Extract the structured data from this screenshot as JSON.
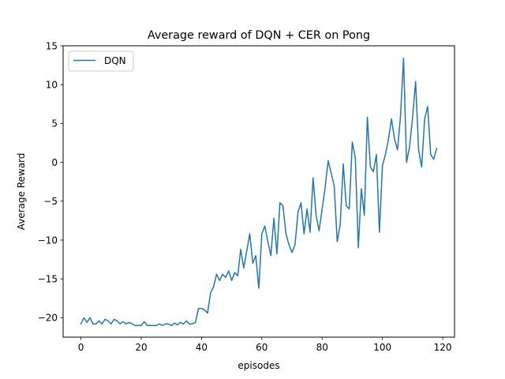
{
  "chart_data": {
    "type": "line",
    "title": "Average reward of DQN + CER on Pong",
    "xlabel": "episodes",
    "ylabel": "Average Reward",
    "xlim": [
      -5.9,
      123.9
    ],
    "ylim": [
      -22.5,
      15.0
    ],
    "xticks": [
      0,
      20,
      40,
      60,
      80,
      100,
      120
    ],
    "yticks": [
      -20,
      -15,
      -10,
      -5,
      0,
      5,
      10,
      15
    ],
    "grid": false,
    "legend": "top-left",
    "series": [
      {
        "name": "DQN",
        "color": "#1f77b4",
        "x": [
          0,
          1,
          2,
          3,
          4,
          5,
          6,
          7,
          8,
          9,
          10,
          11,
          12,
          13,
          14,
          15,
          16,
          17,
          18,
          19,
          20,
          21,
          22,
          23,
          24,
          25,
          26,
          27,
          28,
          29,
          30,
          31,
          32,
          33,
          34,
          35,
          36,
          37,
          38,
          39,
          40,
          41,
          42,
          43,
          44,
          45,
          46,
          47,
          48,
          49,
          50,
          51,
          52,
          53,
          54,
          55,
          56,
          57,
          58,
          59,
          60,
          61,
          62,
          63,
          64,
          65,
          66,
          67,
          68,
          69,
          70,
          71,
          72,
          73,
          74,
          75,
          76,
          77,
          78,
          79,
          80,
          81,
          82,
          83,
          84,
          85,
          86,
          87,
          88,
          89,
          90,
          91,
          92,
          93,
          94,
          95,
          96,
          97,
          98,
          99,
          100,
          101,
          102,
          103,
          104,
          105,
          106,
          107,
          108,
          109,
          110,
          111,
          112,
          113,
          114,
          115,
          116,
          117,
          118
        ],
        "values": [
          -20.8,
          -20.0,
          -20.6,
          -20.0,
          -20.8,
          -20.8,
          -20.4,
          -20.8,
          -20.2,
          -20.4,
          -20.8,
          -20.2,
          -20.4,
          -20.8,
          -20.5,
          -20.8,
          -20.6,
          -20.8,
          -21.0,
          -21.0,
          -21.0,
          -20.5,
          -21.0,
          -21.0,
          -21.0,
          -21.0,
          -20.8,
          -21.0,
          -20.8,
          -20.8,
          -21.0,
          -20.7,
          -20.9,
          -20.6,
          -20.8,
          -20.4,
          -20.8,
          -20.8,
          -20.6,
          -18.8,
          -18.8,
          -19.0,
          -19.4,
          -16.8,
          -16.0,
          -14.4,
          -15.2,
          -14.4,
          -14.8,
          -14.0,
          -15.2,
          -14.2,
          -14.6,
          -11.2,
          -13.6,
          -11.4,
          -9.2,
          -13.0,
          -12.0,
          -16.2,
          -9.2,
          -8.2,
          -10.2,
          -12.0,
          -7.2,
          -11.8,
          -5.2,
          -5.6,
          -9.2,
          -10.6,
          -11.6,
          -10.6,
          -6.4,
          -5.2,
          -9.2,
          -6.0,
          -9.0,
          -2.0,
          -6.8,
          -8.8,
          -6.0,
          -3.2,
          0.2,
          -1.4,
          -3.0,
          -10.2,
          -8.0,
          -0.2,
          -5.6,
          -6.0,
          2.6,
          0.6,
          -11.0,
          -3.4,
          -6.8,
          5.8,
          -0.6,
          -1.2,
          1.0,
          -9.0,
          -0.4,
          1.0,
          3.0,
          5.6,
          3.0,
          1.6,
          6.0,
          13.4,
          0.0,
          2.0,
          5.8,
          10.4,
          1.6,
          -0.6,
          5.6,
          7.2,
          1.0,
          0.4,
          1.8
        ]
      }
    ]
  }
}
